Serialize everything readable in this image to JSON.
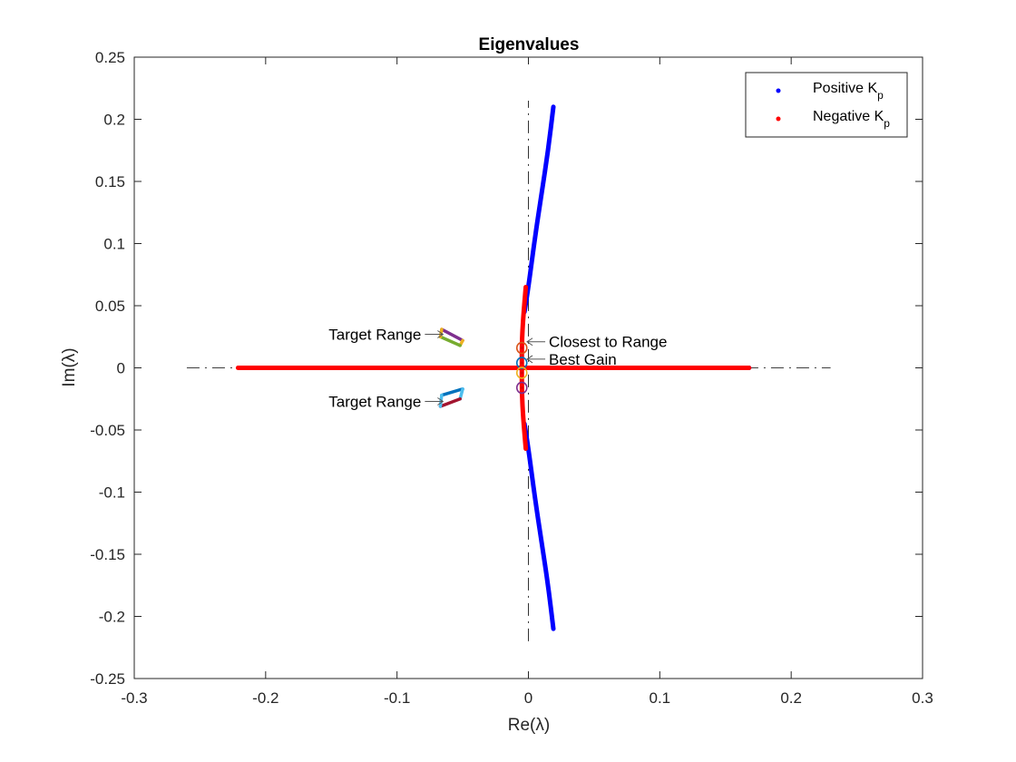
{
  "chart_data": {
    "type": "scatter",
    "title": "Eigenvalues",
    "xlabel": "Re(λ)",
    "ylabel": "Im(λ)",
    "xlim": [
      -0.3,
      0.3
    ],
    "ylim": [
      -0.25,
      0.25
    ],
    "xticks": [
      -0.3,
      -0.2,
      -0.1,
      0,
      0.1,
      0.2,
      0.3
    ],
    "xtick_labels": [
      "-0.3",
      "-0.2",
      "-0.1",
      "0",
      "0.1",
      "0.2",
      "0.3"
    ],
    "yticks": [
      -0.25,
      -0.2,
      -0.15,
      -0.1,
      -0.05,
      0,
      0.05,
      0.1,
      0.15,
      0.2,
      0.25
    ],
    "ytick_labels": [
      "-0.25",
      "-0.2",
      "-0.15",
      "-0.1",
      "-0.05",
      "0",
      "0.05",
      "0.1",
      "0.15",
      "0.2",
      "0.25"
    ],
    "grid": false,
    "legend_position": "top-right",
    "reference_lines": [
      {
        "x": [
          -0.26,
          0.23
        ],
        "y": [
          0,
          0
        ]
      },
      {
        "x": [
          0,
          0
        ],
        "y": [
          -0.22,
          0.215
        ]
      }
    ],
    "series": [
      {
        "name": "Positive K",
        "name_subscript": "p",
        "color": "#0000ff",
        "segments": [
          [
            [
              0.019,
              0.21
            ],
            [
              0.015,
              0.175
            ],
            [
              0.01,
              0.14
            ],
            [
              0.005,
              0.105
            ],
            [
              0.0,
              0.065
            ],
            [
              -0.003,
              0.045
            ]
          ],
          [
            [
              -0.003,
              -0.045
            ],
            [
              0.0,
              -0.065
            ],
            [
              0.005,
              -0.105
            ],
            [
              0.01,
              -0.14
            ],
            [
              0.015,
              -0.175
            ],
            [
              0.019,
              -0.21
            ]
          ],
          [
            [
              0.0,
              0.0
            ],
            [
              0.168,
              0.0
            ]
          ]
        ]
      },
      {
        "name": "Negative K",
        "name_subscript": "p",
        "color": "#ff0000",
        "segments": [
          [
            [
              -0.221,
              0.0
            ],
            [
              0.168,
              0.0
            ]
          ],
          [
            [
              -0.002,
              0.065
            ],
            [
              -0.004,
              0.04
            ],
            [
              -0.005,
              0.02
            ],
            [
              -0.005,
              0.0
            ],
            [
              -0.005,
              -0.02
            ],
            [
              -0.004,
              -0.04
            ],
            [
              -0.002,
              -0.065
            ]
          ]
        ]
      }
    ],
    "target_ranges": [
      {
        "polygon": [
          [
            -0.066,
            0.031
          ],
          [
            -0.05,
            0.022
          ],
          [
            -0.052,
            0.018
          ],
          [
            -0.067,
            0.025
          ]
        ],
        "edge_colors": [
          "#7e2f8e",
          "#edb120",
          "#77ac30",
          "#edb120"
        ]
      },
      {
        "polygon": [
          [
            -0.066,
            -0.022
          ],
          [
            -0.05,
            -0.017
          ],
          [
            -0.052,
            -0.025
          ],
          [
            -0.067,
            -0.031
          ]
        ],
        "edge_colors": [
          "#0072bd",
          "#4dbeee",
          "#a2142f",
          "#4dbeee"
        ]
      }
    ],
    "markers": [
      {
        "x": -0.005,
        "y": 0.016,
        "color": "#d95319"
      },
      {
        "x": -0.005,
        "y": 0.004,
        "color": "#0072bd"
      },
      {
        "x": -0.005,
        "y": -0.004,
        "color": "#edb120"
      },
      {
        "x": -0.005,
        "y": -0.016,
        "color": "#7e2f8e"
      }
    ],
    "annotations": [
      {
        "text": "Target Range",
        "arrow_to": [
          -0.065,
          0.027
        ],
        "side": "left"
      },
      {
        "text": "Target Range",
        "arrow_to": [
          -0.065,
          -0.027
        ],
        "side": "left"
      },
      {
        "text": "Closest to Range",
        "arrow_to": [
          -0.001,
          0.021
        ],
        "side": "right"
      },
      {
        "text": "Best Gain",
        "arrow_to": [
          -0.001,
          0.007
        ],
        "side": "right"
      }
    ]
  }
}
